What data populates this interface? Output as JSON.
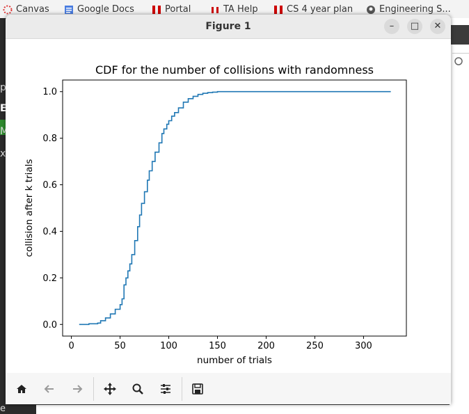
{
  "browser": {
    "bookmarks": [
      {
        "label": "Canvas",
        "icon": "canvas-icon"
      },
      {
        "label": "Google Docs",
        "icon": "docs-icon"
      },
      {
        "label": "Portal",
        "icon": "portal-icon"
      },
      {
        "label": "TA Help",
        "icon": "tahelp-icon"
      },
      {
        "label": "CS 4 year plan",
        "icon": "plan-icon"
      },
      {
        "label": "Engineering S...",
        "icon": "github-icon"
      }
    ],
    "side_fragments": [
      "p",
      "EF",
      "M",
      "x"
    ],
    "bottom_fragment": "e"
  },
  "window": {
    "title": "Figure 1",
    "minimize": "–",
    "maximize": "□",
    "close": "✕"
  },
  "toolbar": {
    "icons": [
      "home-icon",
      "back-icon",
      "forward-icon",
      "pan-icon",
      "zoom-icon",
      "configure-icon",
      "save-icon"
    ]
  },
  "colors": {
    "line": "#1f77b4",
    "toolbar_bg": "#f6f6f6",
    "titlebar_bg": "#ebebeb"
  },
  "chart_data": {
    "type": "line",
    "title": "CDF for the number of collisions with randomness",
    "xlabel": "number of trials",
    "ylabel": "collision after k trials",
    "xlim": [
      -9,
      344
    ],
    "ylim": [
      -0.05,
      1.05
    ],
    "xticks": [
      0,
      50,
      100,
      150,
      200,
      250,
      300
    ],
    "xtick_labels": [
      "0",
      "50",
      "100",
      "150",
      "200",
      "250",
      "300"
    ],
    "yticks": [
      0.0,
      0.2,
      0.4,
      0.6,
      0.8,
      1.0
    ],
    "ytick_labels": [
      "0.0",
      "0.2",
      "0.4",
      "0.6",
      "0.8",
      "1.0"
    ],
    "grid": false,
    "series": [
      {
        "x": [
          8,
          17,
          18,
          27,
          30,
          35,
          40,
          45,
          50,
          52,
          54,
          56,
          58,
          60,
          62,
          65,
          68,
          70,
          72,
          75,
          78,
          80,
          83,
          86,
          90,
          93,
          95,
          98,
          100,
          103,
          106,
          110,
          115,
          120,
          125,
          130,
          135,
          140,
          145,
          150,
          160,
          200,
          250,
          300,
          328
        ],
        "y": [
          0.0,
          0.0,
          0.003,
          0.006,
          0.016,
          0.028,
          0.045,
          0.065,
          0.085,
          0.11,
          0.17,
          0.2,
          0.23,
          0.26,
          0.3,
          0.36,
          0.42,
          0.47,
          0.52,
          0.57,
          0.62,
          0.66,
          0.7,
          0.74,
          0.78,
          0.82,
          0.84,
          0.86,
          0.875,
          0.895,
          0.91,
          0.93,
          0.955,
          0.97,
          0.98,
          0.988,
          0.993,
          0.996,
          0.998,
          1.0,
          1.0,
          1.0,
          1.0,
          1.0,
          1.0
        ]
      }
    ]
  }
}
